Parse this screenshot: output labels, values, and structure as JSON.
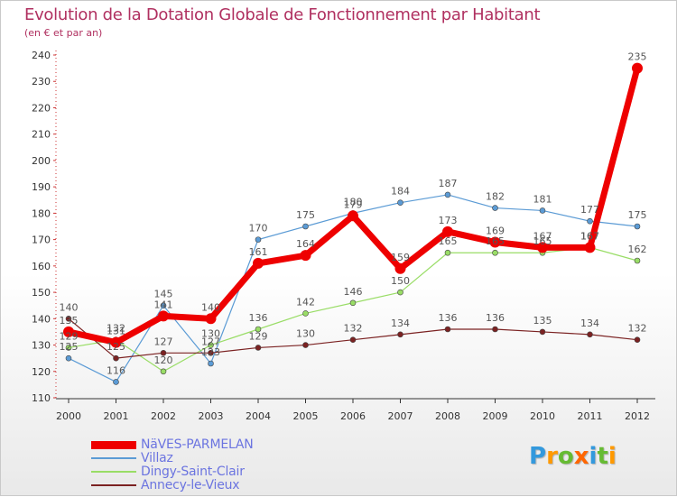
{
  "chart_data": {
    "type": "line",
    "title": "Evolution de la Dotation Globale de Fonctionnement par Habitant",
    "subtitle": "(en € et par an)",
    "xlabel": "",
    "ylabel": "",
    "categories": [
      "2000",
      "2001",
      "2002",
      "2003",
      "2004",
      "2005",
      "2006",
      "2007",
      "2008",
      "2009",
      "2010",
      "2011",
      "2012"
    ],
    "ylim": [
      110,
      240
    ],
    "yticks": [
      110,
      120,
      130,
      140,
      150,
      160,
      170,
      180,
      190,
      200,
      210,
      220,
      230,
      240
    ],
    "grid": false,
    "legend_position": "bottom-left",
    "series": [
      {
        "name": "NäVES-PARMELAN",
        "color": "#ee0000",
        "values": [
          135,
          131,
          141,
          140,
          161,
          164,
          179,
          159,
          173,
          169,
          167,
          167,
          235
        ]
      },
      {
        "name": "Villaz",
        "color": "#5b9bd5",
        "values": [
          125,
          116,
          145,
          123,
          170,
          175,
          180,
          184,
          187,
          182,
          181,
          177,
          175
        ]
      },
      {
        "name": "Dingy-Saint-Clair",
        "color": "#99dd66",
        "values": [
          129,
          132,
          120,
          130,
          136,
          142,
          146,
          150,
          165,
          165,
          165,
          167,
          162
        ]
      },
      {
        "name": "Annecy-le-Vieux",
        "color": "#7b2222",
        "values": [
          140,
          125,
          127,
          127,
          129,
          130,
          132,
          134,
          136,
          136,
          135,
          134,
          132
        ]
      }
    ]
  },
  "branding": {
    "letters": [
      "P",
      "r",
      "o",
      "x",
      "i",
      "t",
      "i"
    ],
    "colors": [
      "#3399dd",
      "#ff9900",
      "#66bb33",
      "#ff6600",
      "#3399dd",
      "#66bb33",
      "#ff9900"
    ]
  }
}
